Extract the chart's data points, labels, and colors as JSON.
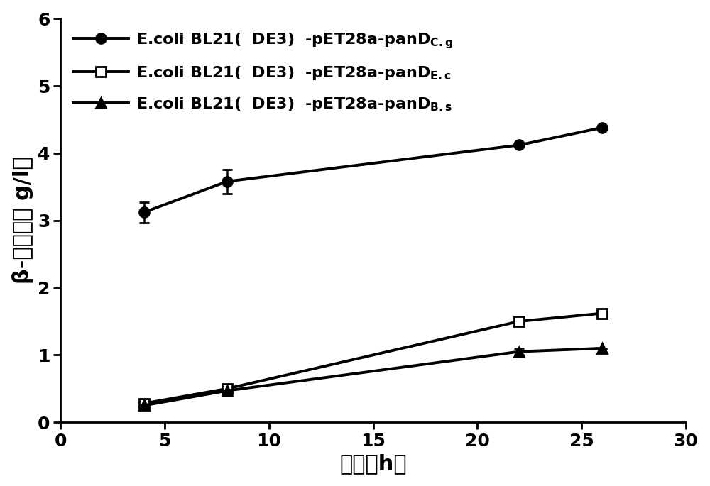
{
  "x": [
    4,
    8,
    22,
    26
  ],
  "series": [
    {
      "name_main": "E.coli BL21(  DE3)  -pET28a-panD",
      "name_sub": "C.g",
      "y": [
        3.12,
        3.58,
        4.12,
        4.38
      ],
      "yerr": [
        0.15,
        0.18,
        0.0,
        0.0
      ],
      "marker": "o",
      "fillstyle": "full",
      "color": "#000000"
    },
    {
      "name_main": "E.coli BL21(  DE3)  -pET28a-panD",
      "name_sub": "E.c",
      "y": [
        0.28,
        0.5,
        1.5,
        1.62
      ],
      "yerr": [
        0.0,
        0.0,
        0.05,
        0.0
      ],
      "marker": "s",
      "fillstyle": "none",
      "color": "#000000"
    },
    {
      "name_main": "E.coli BL21(  DE3)  -pET28a-panD",
      "name_sub": "B.s",
      "y": [
        0.25,
        0.47,
        1.05,
        1.1
      ],
      "yerr": [
        0.0,
        0.0,
        0.05,
        0.0
      ],
      "marker": "^",
      "fillstyle": "full",
      "color": "#000000"
    }
  ],
  "xlabel": "时间（h）",
  "ylabel_prefix": "β-丙氨酸（",
  "ylabel_suffix": " g/l）",
  "xlim": [
    0,
    30
  ],
  "ylim": [
    0,
    6
  ],
  "xticks": [
    0,
    5,
    10,
    15,
    20,
    25,
    30
  ],
  "yticks": [
    0,
    1,
    2,
    3,
    4,
    5,
    6
  ],
  "linewidth": 2.8,
  "markersize": 10,
  "font_size_label": 22,
  "font_size_tick": 18,
  "font_size_legend": 16,
  "background_color": "#ffffff"
}
